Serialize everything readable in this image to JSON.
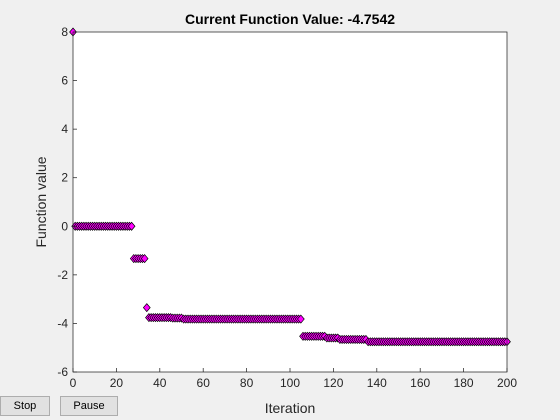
{
  "buttons": {
    "stop_label": "Stop",
    "pause_label": "Pause"
  },
  "chart_data": {
    "type": "scatter",
    "title": "Current Function Value: -4.7542",
    "xlabel": "Iteration",
    "ylabel": "Function value",
    "xlim": [
      0,
      200
    ],
    "ylim": [
      -6,
      8
    ],
    "xticks": [
      0,
      20,
      40,
      60,
      80,
      100,
      120,
      140,
      160,
      180,
      200
    ],
    "yticks": [
      -6,
      -4,
      -2,
      0,
      2,
      4,
      6,
      8
    ],
    "grid": false,
    "marker": "diamond",
    "marker_face_color": "#ff00ff",
    "marker_edge_color": "#000000",
    "segments": [
      {
        "from": 0,
        "to": 0,
        "value": 8.0
      },
      {
        "from": 1,
        "to": 27,
        "value": 0.0
      },
      {
        "from": 28,
        "to": 33,
        "value": -1.33
      },
      {
        "from": 34,
        "to": 34,
        "value": -3.35
      },
      {
        "from": 35,
        "to": 45,
        "value": -3.76
      },
      {
        "from": 46,
        "to": 50,
        "value": -3.78
      },
      {
        "from": 51,
        "to": 105,
        "value": -3.82
      },
      {
        "from": 106,
        "to": 116,
        "value": -4.53
      },
      {
        "from": 117,
        "to": 122,
        "value": -4.6
      },
      {
        "from": 123,
        "to": 135,
        "value": -4.66
      },
      {
        "from": 136,
        "to": 200,
        "value": -4.7542
      }
    ]
  }
}
